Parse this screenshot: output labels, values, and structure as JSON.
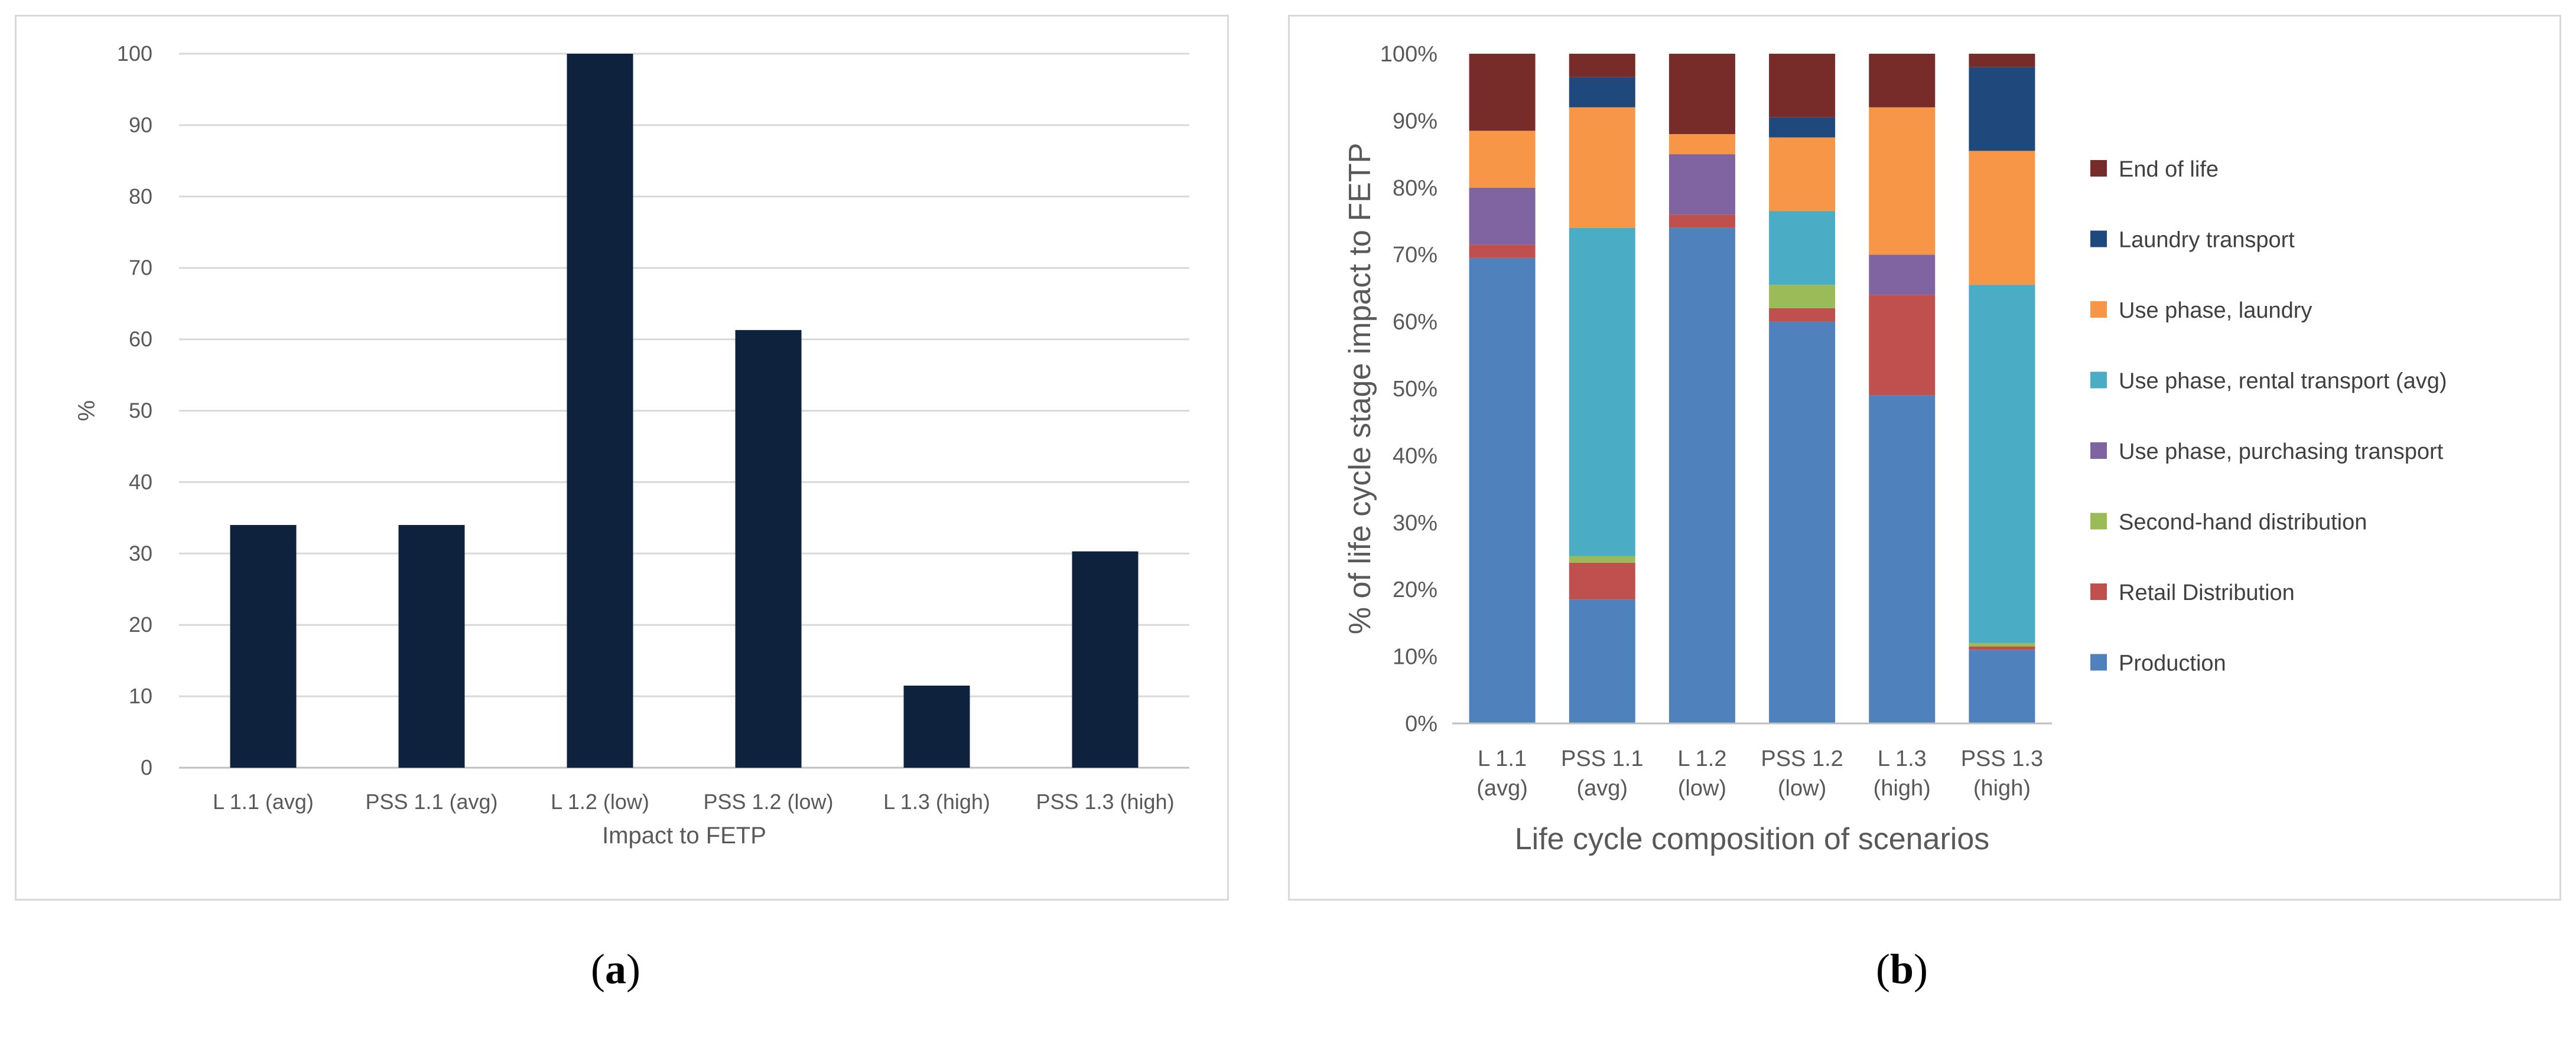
{
  "chart_data": [
    {
      "type": "bar",
      "panel": "a",
      "categories": [
        "L 1.1 (avg)",
        "PSS 1.1 (avg)",
        "L 1.2 (low)",
        "PSS 1.2 (low)",
        "L 1.3 (high)",
        "PSS 1.3 (high)"
      ],
      "values": [
        34,
        34,
        100,
        61.3,
        11.5,
        30.3
      ],
      "xlabel": "Impact to FETP",
      "ylabel": "%",
      "ylim": [
        0,
        100
      ],
      "yticks": [
        0,
        10,
        20,
        30,
        40,
        50,
        60,
        70,
        80,
        90,
        100
      ],
      "grid": true,
      "bar_color": "#0f223d"
    },
    {
      "type": "bar",
      "stacked": true,
      "panel": "b",
      "categories": [
        [
          "L 1.1",
          "(avg)"
        ],
        [
          "PSS 1.1",
          "(avg)"
        ],
        [
          "L 1.2",
          "(low)"
        ],
        [
          "PSS 1.2",
          "(low)"
        ],
        [
          "L 1.3",
          "(high)"
        ],
        [
          "PSS 1.3",
          "(high)"
        ]
      ],
      "xlabel": "Life cycle composition of scenarios",
      "ylabel": "% of life cycle stage impact to FETP",
      "ylim": [
        0,
        100
      ],
      "yticks": [
        "0%",
        "10%",
        "20%",
        "30%",
        "40%",
        "50%",
        "60%",
        "70%",
        "80%",
        "90%",
        "100%"
      ],
      "legend_position": "right",
      "series": [
        {
          "name": "Production",
          "color": "#4f81bd",
          "values": [
            69.5,
            18.5,
            74,
            60,
            49,
            11
          ]
        },
        {
          "name": "Retail Distribution",
          "color": "#c0504d",
          "values": [
            2,
            5.5,
            2,
            2,
            15,
            0.5
          ]
        },
        {
          "name": "Second-hand distribution",
          "color": "#9bbb59",
          "values": [
            0,
            1,
            0,
            3.5,
            0,
            0.5
          ]
        },
        {
          "name": "Use phase, purchasing transport",
          "color": "#8064a2",
          "values": [
            8.5,
            0,
            9,
            0,
            6,
            0
          ]
        },
        {
          "name": "Use phase, rental transport (avg)",
          "color": "#4bacc6",
          "values": [
            0,
            49,
            0,
            11,
            0,
            53.5
          ]
        },
        {
          "name": "Use phase, laundry",
          "color": "#f79646",
          "values": [
            8.5,
            18,
            3,
            11,
            22,
            20
          ]
        },
        {
          "name": "Laundry transport",
          "color": "#1f497d",
          "values": [
            0,
            4.5,
            0,
            3,
            0,
            12.5
          ]
        },
        {
          "name": "End of life",
          "color": "#772c2a",
          "values": [
            11.5,
            3.5,
            12,
            9.5,
            8,
            2
          ]
        }
      ]
    }
  ],
  "captions": {
    "a": "a",
    "b": "b"
  }
}
